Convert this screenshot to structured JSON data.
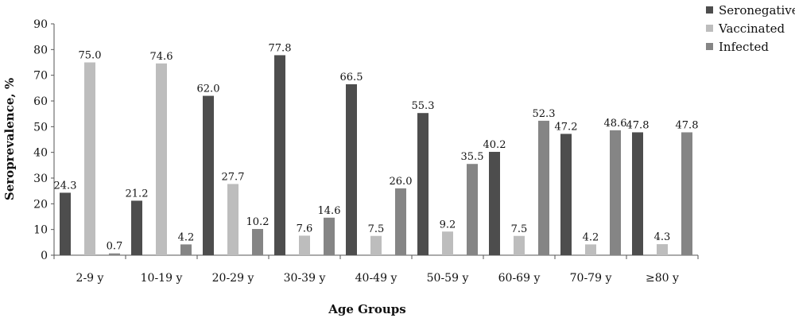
{
  "chart_data": {
    "type": "bar",
    "title": "",
    "xlabel": "Age Groups",
    "ylabel": "Seroprevalence, %",
    "ylim": [
      0,
      90
    ],
    "yticks": [
      0,
      10,
      20,
      30,
      40,
      50,
      60,
      70,
      80,
      90
    ],
    "grid": false,
    "legend_position": "top-right",
    "categories": [
      "2-9 y",
      "10-19 y",
      "20-29 y",
      "30-39 y",
      "40-49 y",
      "50-59 y",
      "60-69 y",
      "70-79 y",
      "≥80 y"
    ],
    "series": [
      {
        "name": "Seronegative",
        "color": "#4d4d4d",
        "values": [
          24.3,
          21.2,
          62.0,
          77.8,
          66.5,
          55.3,
          40.2,
          47.2,
          47.8
        ],
        "labels": [
          "24.3",
          "21.2",
          "62.0",
          "77.8",
          "66.5",
          "55.3",
          "40.2",
          "47.2",
          "47.8"
        ]
      },
      {
        "name": "Vaccinated",
        "color": "#bdbdbd",
        "values": [
          75.0,
          74.6,
          27.7,
          7.6,
          7.5,
          9.2,
          7.5,
          4.2,
          4.3
        ],
        "labels": [
          "75.0",
          "74.6",
          "27.7",
          "7.6",
          "7.5",
          "9.2",
          "7.5",
          "4.2",
          "4.3"
        ]
      },
      {
        "name": "Infected",
        "color": "#858585",
        "values": [
          0.7,
          4.2,
          10.2,
          14.6,
          26.0,
          35.5,
          52.3,
          48.6,
          47.8
        ],
        "labels": [
          "0.7",
          "4.2",
          "10.2",
          "14.6",
          "26.0",
          "35.5",
          "52.3",
          "48.6",
          "47.8"
        ]
      }
    ]
  }
}
